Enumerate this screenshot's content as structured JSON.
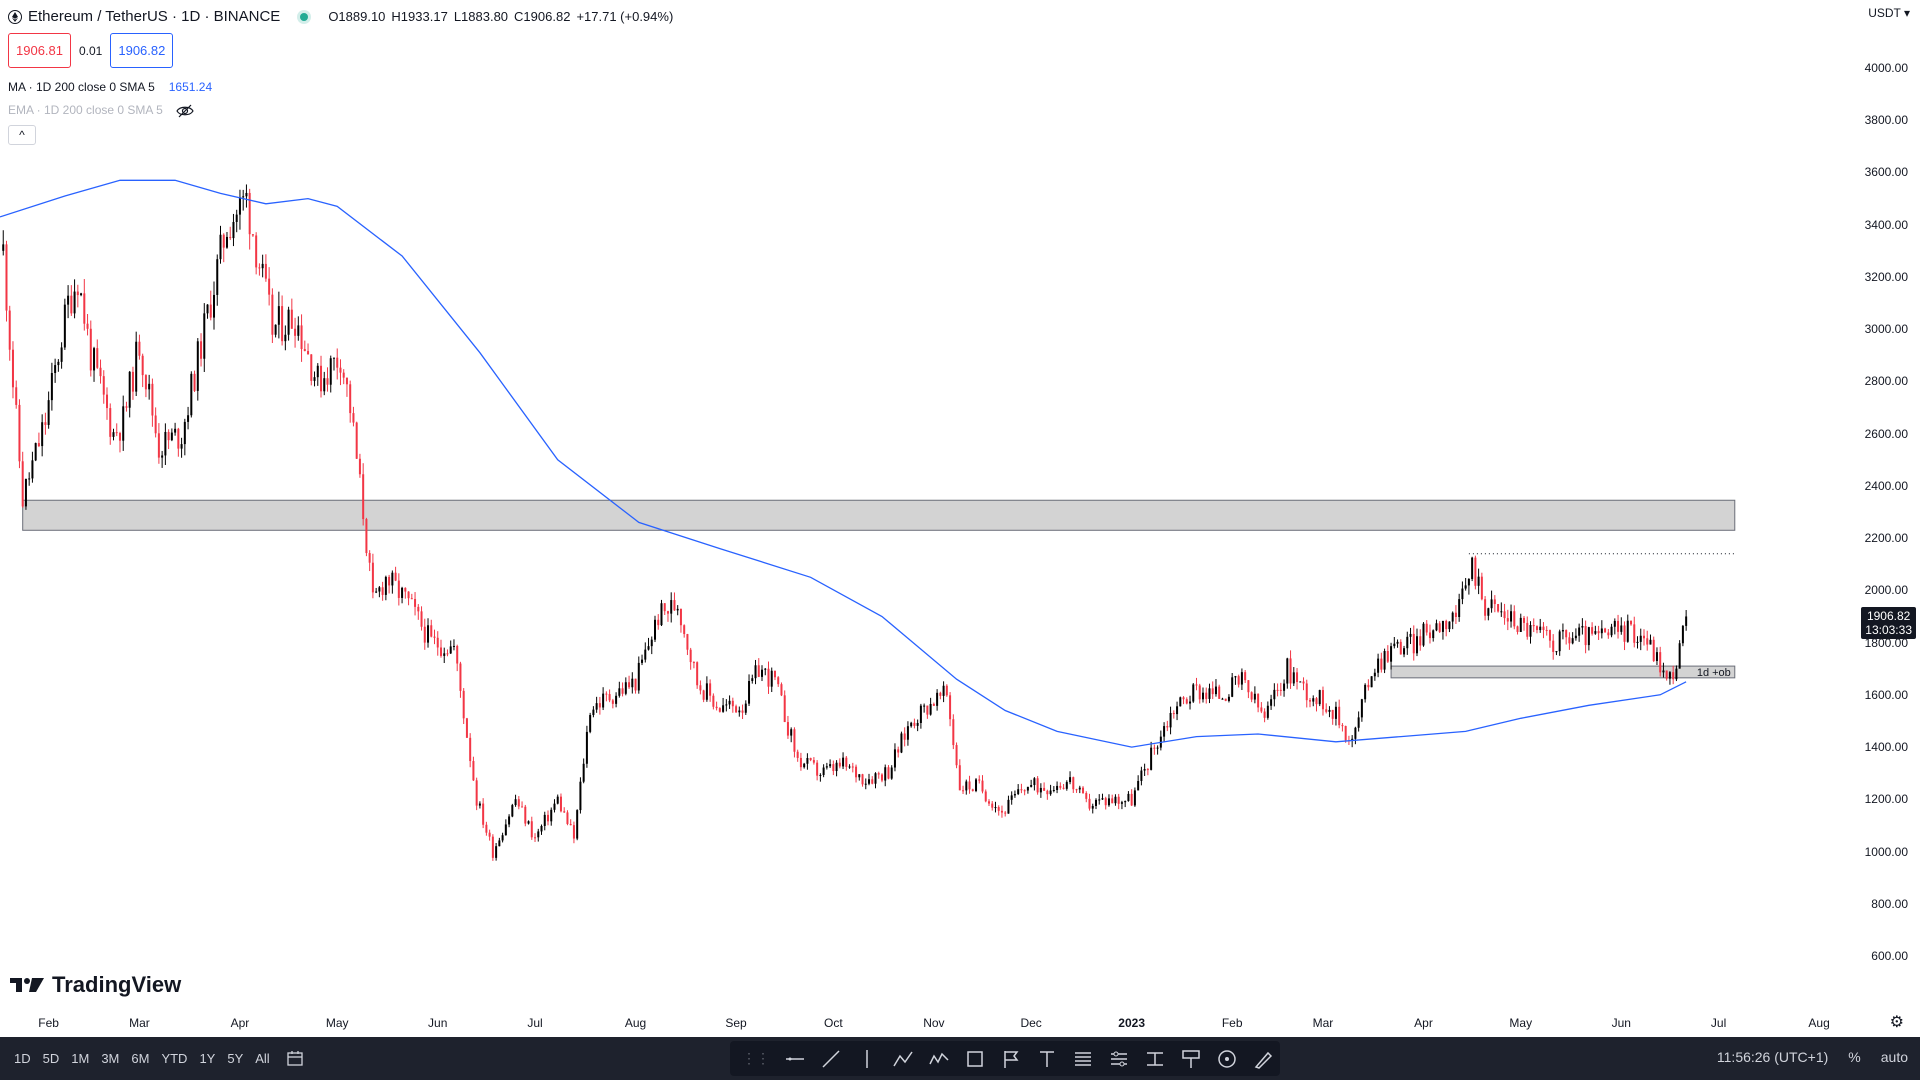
{
  "header": {
    "symbol": "Ethereum / TetherUS · 1D · BINANCE",
    "ohlc_open": "O1889.10",
    "ohlc_high": "H1933.17",
    "ohlc_low": "L1883.80",
    "ohlc_close": "C1906.82",
    "change": "+17.71 (+0.94%)"
  },
  "trade": {
    "sell": "1906.81",
    "spread": "0.01",
    "buy": "1906.82"
  },
  "indicators": {
    "ma_label": "MA · 1D 200 close 0 SMA 5",
    "ma_value": "1651.24",
    "ema_label": "EMA · 1D 200 close 0 SMA 5"
  },
  "collapse_glyph": "^",
  "price_axis": {
    "currency": "USDT ▾",
    "current_price": "1906.82",
    "countdown": "13:03:33"
  },
  "annotation_label": "1d +ob",
  "branding": "TradingView",
  "bottom_bar": {
    "ranges": [
      "1D",
      "5D",
      "1M",
      "3M",
      "6M",
      "YTD",
      "1Y",
      "5Y",
      "All"
    ],
    "clock": "11:56:26 (UTC+1)",
    "percent": "%",
    "auto": "auto"
  },
  "colors": {
    "up": "#000000",
    "down": "#f23645",
    "ma": "#2962ff",
    "zone": "#d1d1d1"
  },
  "icons": [
    "ethereum-icon",
    "eye-off-icon",
    "gear-icon",
    "calendar-range-icon",
    "tradingview-logo-icon"
  ],
  "chart_data": {
    "type": "line",
    "title": "Ethereum / TetherUS · 1D · BINANCE",
    "ylim": [
      600,
      4000
    ],
    "y_ticks": [
      4000,
      3800,
      3600,
      3400,
      3200,
      3000,
      2800,
      2600,
      2400,
      2200,
      2000,
      1800,
      1600,
      1400,
      1200,
      1000,
      800,
      600
    ],
    "y_tick_labels": [
      "4000.00",
      "3800.00",
      "3600.00",
      "3400.00",
      "3200.00",
      "3000.00",
      "2800.00",
      "2600.00",
      "2400.00",
      "2200.00",
      "2000.00",
      "1800.00",
      "1600.00",
      "1400.00",
      "1200.00",
      "1000.00",
      "800.00",
      "600.00"
    ],
    "x_ticks": [
      "Feb",
      "Mar",
      "Apr",
      "May",
      "Jun",
      "Jul",
      "Aug",
      "Sep",
      "Oct",
      "Nov",
      "Dec",
      "2023",
      "Feb",
      "Mar",
      "Apr",
      "May",
      "Jun",
      "Jul",
      "Aug"
    ],
    "x_tick_dates": [
      "2022-02-01",
      "2022-03-01",
      "2022-04-01",
      "2022-05-01",
      "2022-06-01",
      "2022-07-01",
      "2022-08-01",
      "2022-09-01",
      "2022-10-01",
      "2022-11-01",
      "2022-12-01",
      "2023-01-01",
      "2023-02-01",
      "2023-03-01",
      "2023-04-01",
      "2023-05-01",
      "2023-06-01",
      "2023-07-01",
      "2023-08-01"
    ],
    "x_range": [
      "2022-01-17",
      "2023-08-13"
    ],
    "series": [
      {
        "name": "ETHUSDT close",
        "x": [
          "2022-01-18",
          "2022-01-21",
          "2022-01-24",
          "2022-01-31",
          "2022-02-07",
          "2022-02-10",
          "2022-02-14",
          "2022-02-21",
          "2022-02-24",
          "2022-03-01",
          "2022-03-07",
          "2022-03-14",
          "2022-03-21",
          "2022-03-28",
          "2022-04-03",
          "2022-04-11",
          "2022-04-18",
          "2022-04-25",
          "2022-05-02",
          "2022-05-05",
          "2022-05-09",
          "2022-05-12",
          "2022-05-16",
          "2022-05-23",
          "2022-05-30",
          "2022-06-06",
          "2022-06-13",
          "2022-06-18",
          "2022-06-25",
          "2022-07-01",
          "2022-07-08",
          "2022-07-13",
          "2022-07-18",
          "2022-07-25",
          "2022-08-01",
          "2022-08-08",
          "2022-08-14",
          "2022-08-20",
          "2022-08-27",
          "2022-09-03",
          "2022-09-08",
          "2022-09-13",
          "2022-09-20",
          "2022-09-27",
          "2022-10-04",
          "2022-10-11",
          "2022-10-18",
          "2022-10-25",
          "2022-11-01",
          "2022-11-05",
          "2022-11-09",
          "2022-11-15",
          "2022-11-22",
          "2022-11-29",
          "2022-12-06",
          "2022-12-13",
          "2022-12-18",
          "2022-12-25",
          "2023-01-01",
          "2023-01-08",
          "2023-01-14",
          "2023-01-21",
          "2023-01-28",
          "2023-02-04",
          "2023-02-11",
          "2023-02-18",
          "2023-02-25",
          "2023-03-03",
          "2023-03-10",
          "2023-03-16",
          "2023-03-22",
          "2023-03-29",
          "2023-04-05",
          "2023-04-12",
          "2023-04-16",
          "2023-04-20",
          "2023-04-27",
          "2023-05-04",
          "2023-05-11",
          "2023-05-18",
          "2023-05-25",
          "2023-06-01",
          "2023-06-08",
          "2023-06-13",
          "2023-06-15",
          "2023-06-18",
          "2023-06-21"
        ],
        "values": [
          3300,
          2800,
          2350,
          2650,
          3100,
          3200,
          2900,
          2600,
          2650,
          2950,
          2550,
          2600,
          3000,
          3400,
          3500,
          3000,
          3050,
          2800,
          2900,
          2700,
          2300,
          1950,
          2050,
          1950,
          1800,
          1780,
          1200,
          1000,
          1200,
          1050,
          1200,
          1050,
          1550,
          1600,
          1650,
          1900,
          1950,
          1650,
          1550,
          1560,
          1700,
          1650,
          1350,
          1300,
          1330,
          1280,
          1310,
          1500,
          1580,
          1600,
          1250,
          1250,
          1150,
          1250,
          1250,
          1270,
          1180,
          1200,
          1200,
          1400,
          1550,
          1620,
          1600,
          1650,
          1510,
          1700,
          1600,
          1560,
          1420,
          1700,
          1780,
          1800,
          1870,
          1920,
          2100,
          1950,
          1900,
          1850,
          1800,
          1830,
          1820,
          1850,
          1830,
          1720,
          1650,
          1720,
          1900
        ]
      },
      {
        "name": "MA 200",
        "x": [
          "2022-01-17",
          "2022-02-06",
          "2022-02-23",
          "2022-03-12",
          "2022-03-26",
          "2022-04-09",
          "2022-04-22",
          "2022-05-01",
          "2022-05-21",
          "2022-06-14",
          "2022-07-08",
          "2022-08-02",
          "2022-08-27",
          "2022-09-24",
          "2022-10-16",
          "2022-11-08",
          "2022-11-23",
          "2022-12-09",
          "2023-01-01",
          "2023-01-21",
          "2023-02-09",
          "2023-03-05",
          "2023-03-25",
          "2023-04-14",
          "2023-05-01",
          "2023-05-22",
          "2023-06-13",
          "2023-06-21"
        ],
        "values": [
          3430,
          3510,
          3570,
          3570,
          3520,
          3480,
          3500,
          3470,
          3280,
          2910,
          2500,
          2260,
          2160,
          2050,
          1900,
          1660,
          1540,
          1460,
          1400,
          1440,
          1450,
          1420,
          1440,
          1460,
          1510,
          1560,
          1600,
          1650
        ]
      }
    ],
    "zones": [
      {
        "from": "2022-01-24",
        "to": "2023-07-06",
        "low": 2230,
        "high": 2345
      },
      {
        "from": "2023-03-22",
        "to": "2023-07-06",
        "low": 1665,
        "high": 1710,
        "label": "1d +ob"
      }
    ],
    "reference_line": {
      "from": "2023-04-15",
      "to": "2023-07-06",
      "value": 2140,
      "style": "dotted"
    },
    "grid": false,
    "legend": "top-left"
  }
}
